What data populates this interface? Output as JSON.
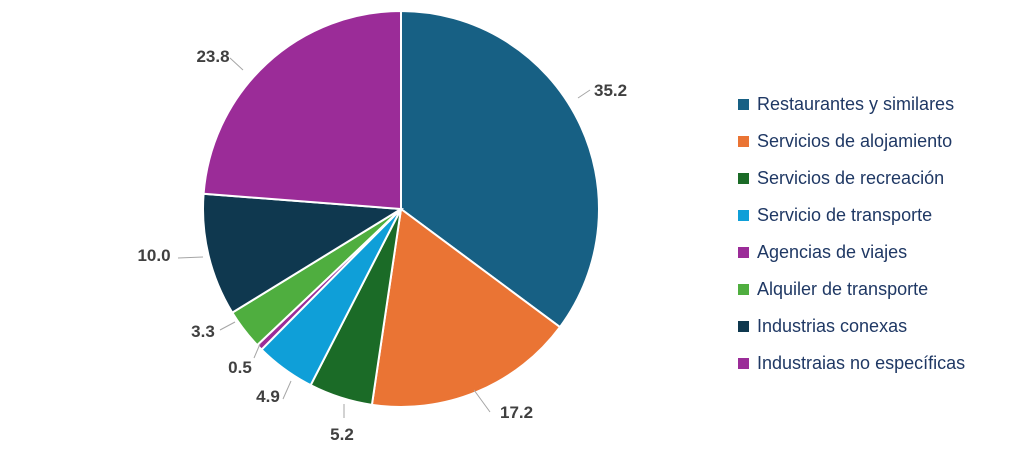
{
  "chart_data": {
    "type": "pie",
    "title": "",
    "categories": [
      "Restaurantes y similares",
      "Servicios de alojamiento",
      "Servicios de recreación",
      "Servicio de transporte",
      "Agencias de viajes",
      "Alquiler de transporte",
      "Industrias conexas",
      "Industraias no específicas"
    ],
    "values": [
      35.2,
      17.2,
      5.2,
      4.9,
      0.5,
      3.3,
      10.0,
      23.8
    ],
    "labels": [
      "35.2",
      "17.2",
      "5.2",
      "4.9",
      "0.5",
      "3.3",
      "10.0",
      "23.8"
    ],
    "colors": [
      "#176084",
      "#ea7434",
      "#1b6b27",
      "#0f9fd8",
      "#9b2c98",
      "#4fae3f",
      "#0f384f",
      "#9b2c98"
    ],
    "legend_position": "right",
    "start_angle": "12 o'clock",
    "direction": "clockwise"
  }
}
